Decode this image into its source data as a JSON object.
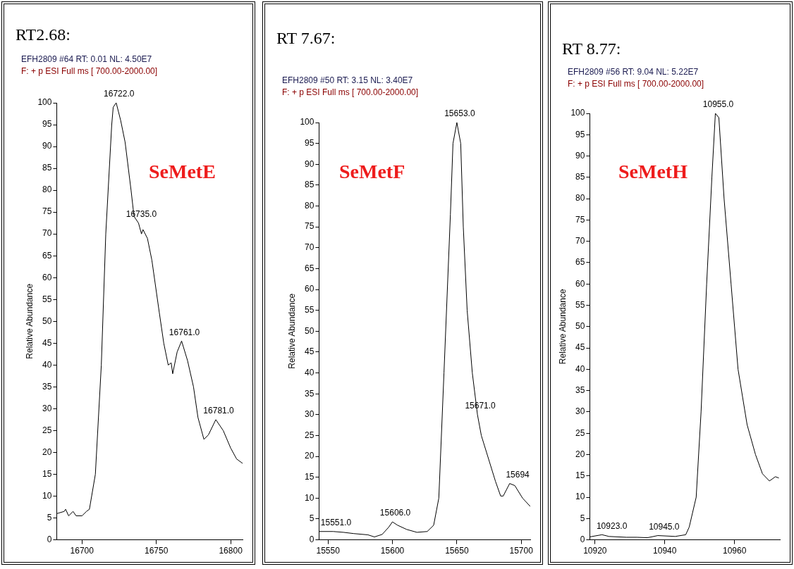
{
  "chart_data": [
    {
      "type": "line",
      "title": "RT2.68:",
      "subtitle": "EFH2809 #64  RT: 0.01  NL: 4.50E7",
      "ylabel": "Relative Abundance",
      "marker": "none",
      "line_style": "solid",
      "annotations": [
        "F: + p ESI Full ms [ 700.00-2000.00]",
        "SeMetE",
        {
          "text": "16722.0",
          "x": 16723,
          "y": 100
        },
        {
          "text": "16735.0",
          "x": 16738,
          "y": 72.5
        },
        {
          "text": "16761.0",
          "x": 16767,
          "y": 45.5
        },
        {
          "text": "16781.0",
          "x": 16790,
          "y": 27.5
        }
      ],
      "x": [
        16683,
        16688,
        16689,
        16691,
        16694,
        16696,
        16700,
        16703,
        16705,
        16709,
        16713,
        16716,
        16720,
        16721,
        16723,
        16726,
        16729,
        16733,
        16735,
        16738,
        16740,
        16741,
        16744,
        16747,
        16752,
        16755,
        16758,
        16760,
        16761,
        16764,
        16767,
        16771,
        16775,
        16778,
        16782,
        16785,
        16790,
        16795,
        16800,
        16804,
        16808
      ],
      "series": [
        {
          "color": "#000000",
          "values": [
            6,
            6.5,
            7,
            5.5,
            6.5,
            5.5,
            5.5,
            6.5,
            7,
            15,
            40,
            70,
            95,
            99,
            100,
            96,
            91,
            80,
            74,
            72.5,
            70,
            71,
            69,
            64,
            52,
            45,
            40,
            40.5,
            38,
            43,
            45.5,
            41,
            35,
            28,
            23,
            24,
            27.5,
            25,
            21,
            18.5,
            17.5
          ]
        }
      ],
      "xlim": [
        16683,
        16808
      ],
      "xticks": [
        16700,
        16750,
        16800
      ],
      "ylim": [
        0,
        100
      ],
      "yticks": [
        0,
        5,
        10,
        15,
        20,
        25,
        30,
        35,
        40,
        45,
        50,
        55,
        60,
        65,
        70,
        75,
        80,
        85,
        90,
        95,
        100
      ]
    },
    {
      "type": "line",
      "title": "RT 7.67:",
      "subtitle": "EFH2809 #50  RT: 3.15  NL: 3.40E7",
      "ylabel": "Relative Abundance",
      "marker": "none",
      "line_style": "solid",
      "annotations": [
        "F: + p ESI Full ms [ 700.00-2000.00]",
        "SeMetF",
        {
          "text": "15551.0",
          "x": 15554,
          "y": 2
        },
        {
          "text": "15606.0",
          "x": 15600,
          "y": 4.3
        },
        {
          "text": "15653.0",
          "x": 15650,
          "y": 100
        },
        {
          "text": "15671.0",
          "x": 15666,
          "y": 30
        },
        {
          "text": "15694",
          "x": 15695,
          "y": 13.5
        }
      ],
      "x": [
        15543,
        15554,
        15562,
        15570,
        15581,
        15586,
        15592,
        15597,
        15600,
        15604,
        15611,
        15619,
        15627,
        15632,
        15636,
        15640,
        15645,
        15647,
        15650,
        15653,
        15655,
        15658,
        15662,
        15666,
        15669,
        15674,
        15680,
        15684,
        15686,
        15691,
        15695,
        15701,
        15707
      ],
      "series": [
        {
          "color": "#000000",
          "values": [
            2,
            2,
            1.8,
            1.5,
            1.2,
            0.7,
            1.3,
            3,
            4.3,
            3.5,
            2.5,
            1.8,
            2,
            3.5,
            10,
            40,
            78,
            95,
            100,
            95,
            75,
            55,
            40,
            30,
            25,
            20,
            14,
            10.5,
            10.5,
            13.5,
            13,
            10,
            8
          ]
        }
      ],
      "xlim": [
        15543,
        15707
      ],
      "xticks": [
        15550,
        15600,
        15650,
        15700
      ],
      "ylim": [
        0,
        100
      ],
      "yticks": [
        0,
        5,
        10,
        15,
        20,
        25,
        30,
        35,
        40,
        45,
        50,
        55,
        60,
        65,
        70,
        75,
        80,
        85,
        90,
        95,
        100
      ]
    },
    {
      "type": "line",
      "title": "RT 8.77:",
      "subtitle": "EFH2809 #56  RT: 9.04  NL: 5.22E7",
      "ylabel": "Relative Abundance",
      "marker": "none",
      "line_style": "solid",
      "annotations": [
        "F: + p ESI Full ms [ 700.00-2000.00]",
        "SeMetH",
        {
          "text": "10923.0",
          "x": 10924,
          "y": 1.2
        },
        {
          "text": "10945.0",
          "x": 10939,
          "y": 1
        },
        {
          "text": "10955.0",
          "x": 10954.5,
          "y": 100
        }
      ],
      "x": [
        10918.5,
        10922,
        10924,
        10929,
        10932,
        10935,
        10938,
        10943,
        10946,
        10947,
        10949,
        10950.4,
        10952,
        10953.5,
        10954.5,
        10955.5,
        10957,
        10959,
        10961,
        10963.6,
        10966,
        10968,
        10970,
        10971.7,
        10972.7
      ],
      "series": [
        {
          "color": "#000000",
          "values": [
            0.7,
            1.2,
            0.8,
            0.6,
            0.6,
            0.5,
            1,
            0.8,
            1.2,
            3,
            10,
            30,
            60,
            85,
            100,
            99,
            80,
            60,
            40,
            27,
            20,
            15.5,
            13.8,
            14.8,
            14.5
          ]
        }
      ],
      "xlim": [
        10918.5,
        10973
      ],
      "xticks": [
        10920,
        10940,
        10960
      ],
      "ylim": [
        0,
        100
      ],
      "yticks": [
        0,
        5,
        10,
        15,
        20,
        25,
        30,
        35,
        40,
        45,
        50,
        55,
        60,
        65,
        70,
        75,
        80,
        85,
        90,
        95,
        100
      ]
    }
  ]
}
